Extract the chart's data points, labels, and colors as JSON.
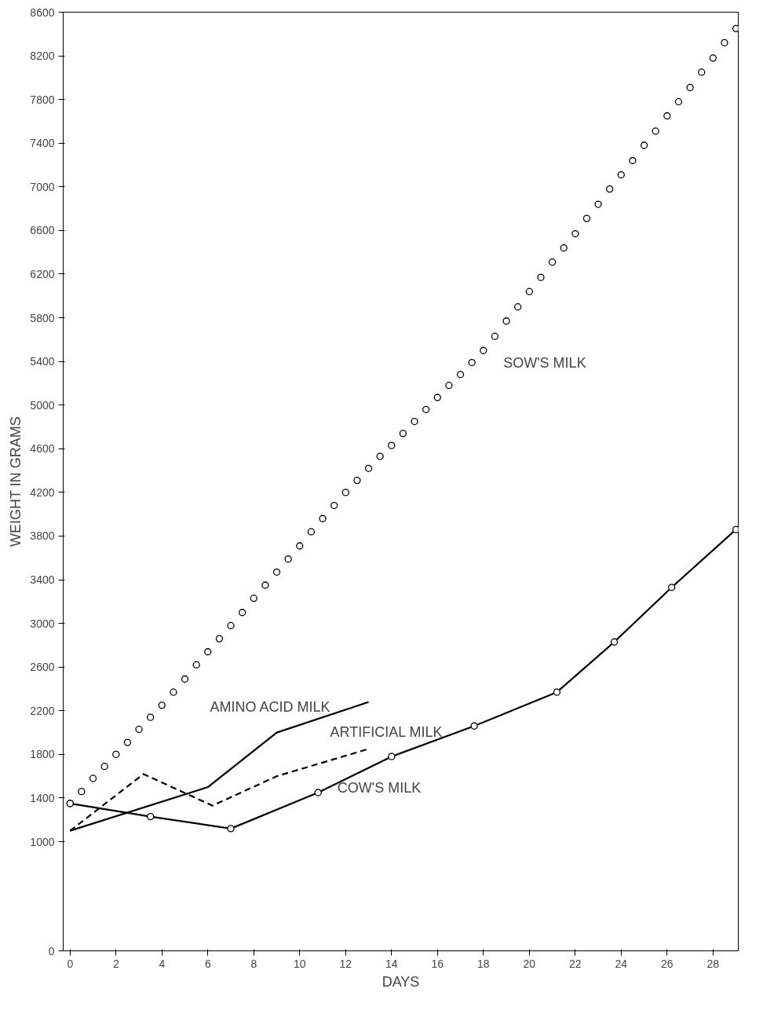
{
  "chart_data": {
    "type": "line",
    "xlabel": "DAYS",
    "ylabel": "WEIGHT IN GRAMS",
    "xlim": [
      -0.3,
      29.1
    ],
    "ylim": [
      0,
      8600
    ],
    "xticks": [
      0,
      2,
      4,
      6,
      8,
      10,
      12,
      14,
      16,
      18,
      20,
      22,
      24,
      26,
      28
    ],
    "yticks": [
      0,
      1000,
      1400,
      1800,
      2200,
      2600,
      3000,
      3400,
      3800,
      4200,
      4600,
      5000,
      5400,
      5800,
      6200,
      6600,
      7000,
      7400,
      7800,
      8200,
      8600
    ],
    "grid": false,
    "series": [
      {
        "type": "scatter",
        "color": "#000000",
        "marker": "circle",
        "x": [
          0,
          0.5,
          1,
          1.5,
          2,
          2.5,
          3,
          3.5,
          4,
          4.5,
          5,
          5.5,
          6,
          6.5,
          7,
          7.5,
          8,
          8.5,
          9,
          9.5,
          10,
          10.5,
          11,
          11.5,
          12,
          12.5,
          13,
          13.5,
          14,
          14.5,
          15,
          15.5,
          16,
          16.5,
          17,
          17.5,
          18,
          18.5,
          19,
          19.5,
          20,
          20.5,
          21,
          21.5,
          22,
          22.5,
          23,
          23.5,
          24,
          24.5,
          25,
          25.5,
          26,
          26.5,
          27,
          27.5,
          28,
          28.5,
          29
        ],
        "values": [
          1350,
          1460,
          1580,
          1690,
          1800,
          1910,
          2030,
          2140,
          2250,
          2370,
          2490,
          2620,
          2740,
          2860,
          2980,
          3100,
          3230,
          3350,
          3470,
          3590,
          3710,
          3840,
          3960,
          4080,
          4200,
          4310,
          4420,
          4530,
          4630,
          4740,
          4850,
          4960,
          5070,
          5180,
          5280,
          5390,
          5500,
          5630,
          5770,
          5900,
          6040,
          6170,
          6310,
          6440,
          6570,
          6710,
          6840,
          6980,
          7110,
          7240,
          7380,
          7510,
          7650,
          7780,
          7910,
          8050,
          8180,
          8320,
          8450
        ]
      },
      {
        "color": "#000000",
        "marker": "circle",
        "line_style": "solid",
        "x": [
          0,
          3.5,
          7,
          10.8,
          14,
          17.6,
          21.2,
          23.7,
          26.2,
          29
        ],
        "values": [
          1350,
          1230,
          1120,
          1450,
          1780,
          2060,
          2370,
          2830,
          3330,
          3860
        ]
      },
      {
        "color": "#000000",
        "marker": "none",
        "line_style": "solid",
        "x": [
          0,
          6,
          9,
          13
        ],
        "values": [
          1100,
          1500,
          2000,
          2280
        ]
      },
      {
        "color": "#000000",
        "marker": "none",
        "line_style": "dashed",
        "x": [
          0,
          3.2,
          6.2,
          9,
          13
        ],
        "values": [
          1100,
          1620,
          1330,
          1600,
          1850
        ]
      }
    ],
    "annotations": [
      {
        "text": "SOW'S MILK",
        "x": 17.5,
        "y": 5390
      },
      {
        "text": "AMINO ACID MILK",
        "x": 7.8,
        "y": 1800
      },
      {
        "text": "ARTIFICIAL MILK",
        "x": 10.3,
        "y": 1680
      },
      {
        "text": "COW'S MILK",
        "x": 15.4,
        "y": 1890
      }
    ]
  }
}
